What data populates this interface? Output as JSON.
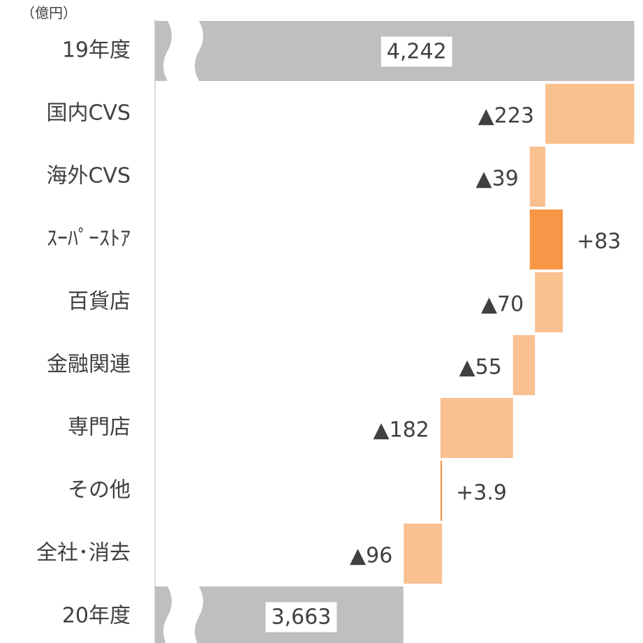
{
  "chart_data": {
    "type": "waterfall",
    "unit_label": "（億円）",
    "categories": [
      "19年度",
      "国内CVS",
      "海外CVS",
      "ｽｰﾊﾟｰｽﾄｱ",
      "百貨店",
      "金融関連",
      "専門店",
      "その他",
      "全社･消去",
      "20年度"
    ],
    "values": [
      4242,
      -223,
      -39,
      83,
      -70,
      -55,
      -182,
      3.9,
      -96,
      3663
    ],
    "value_labels": [
      "4,242",
      "▲223",
      "▲39",
      "+83",
      "▲70",
      "▲55",
      "▲182",
      "+3.9",
      "▲96",
      "3,663"
    ],
    "measure": [
      "total",
      "relative",
      "relative",
      "relative",
      "relative",
      "relative",
      "relative",
      "relative",
      "relative",
      "total"
    ],
    "colors": {
      "total": "#bfbfbf",
      "decrease": "#f9c090",
      "increase": "#f79646"
    },
    "xlim": [
      3040,
      4250
    ]
  }
}
